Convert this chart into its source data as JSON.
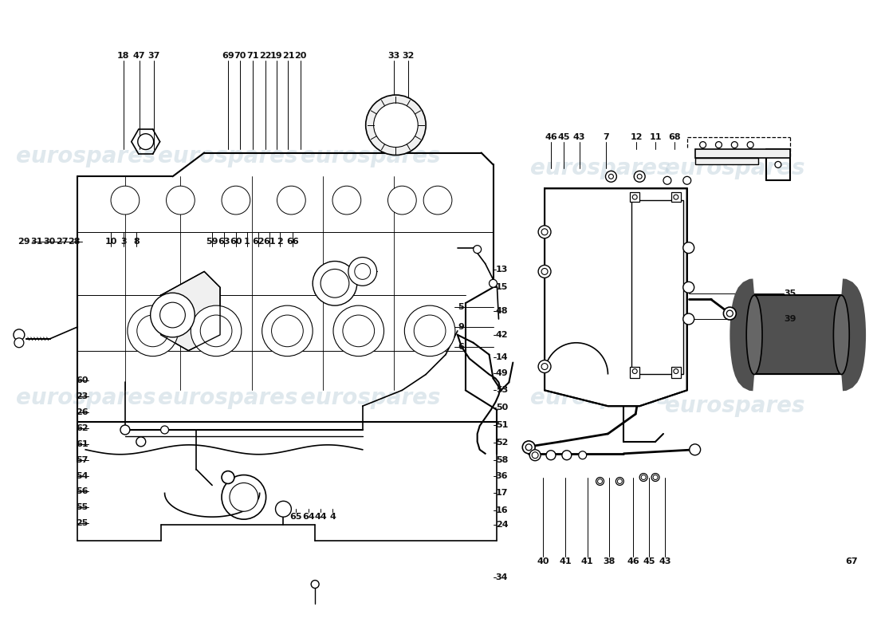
{
  "background_color": "#ffffff",
  "line_color": "#000000",
  "watermark_color": "#b8ccd8",
  "watermark_alpha": 0.45,
  "fig_width": 11.0,
  "fig_height": 8.0,
  "top_numbers": [
    [
      "18",
      148,
      68
    ],
    [
      "47",
      168,
      68
    ],
    [
      "37",
      186,
      68
    ],
    [
      "69",
      280,
      68
    ],
    [
      "70",
      295,
      68
    ],
    [
      "71",
      311,
      68
    ],
    [
      "22",
      327,
      68
    ],
    [
      "19",
      341,
      68
    ],
    [
      "21",
      356,
      68
    ],
    [
      "20",
      372,
      68
    ],
    [
      "33",
      490,
      68
    ],
    [
      "32",
      508,
      68
    ]
  ],
  "mid_left_numbers": [
    [
      "29",
      22,
      302
    ],
    [
      "31",
      38,
      302
    ],
    [
      "30",
      54,
      302
    ],
    [
      "27",
      70,
      302
    ],
    [
      "28",
      86,
      302
    ],
    [
      "10",
      132,
      302
    ],
    [
      "3",
      148,
      302
    ],
    [
      "8",
      164,
      302
    ]
  ],
  "mid_center_numbers": [
    [
      "59",
      260,
      302
    ],
    [
      "63",
      275,
      302
    ],
    [
      "60",
      290,
      302
    ],
    [
      "1",
      304,
      302
    ],
    [
      "62",
      318,
      302
    ],
    [
      "61",
      332,
      302
    ],
    [
      "2",
      346,
      302
    ],
    [
      "66",
      362,
      302
    ]
  ],
  "right_side_numbers": [
    [
      "13",
      626,
      338
    ],
    [
      "15",
      626,
      360
    ],
    [
      "5",
      574,
      385
    ],
    [
      "9",
      574,
      410
    ],
    [
      "6",
      574,
      435
    ],
    [
      "48",
      626,
      390
    ],
    [
      "42",
      626,
      420
    ],
    [
      "14",
      626,
      448
    ],
    [
      "49",
      626,
      468
    ],
    [
      "53",
      626,
      490
    ],
    [
      "50",
      626,
      512
    ],
    [
      "51",
      626,
      534
    ],
    [
      "52",
      626,
      556
    ],
    [
      "58",
      626,
      578
    ],
    [
      "36",
      626,
      598
    ],
    [
      "17",
      626,
      620
    ],
    [
      "16",
      626,
      642
    ],
    [
      "24",
      626,
      660
    ],
    [
      "34",
      626,
      726
    ]
  ],
  "left_lower_numbers": [
    [
      "60",
      96,
      478
    ],
    [
      "23",
      96,
      498
    ],
    [
      "26",
      96,
      518
    ],
    [
      "62",
      96,
      538
    ],
    [
      "61",
      96,
      558
    ],
    [
      "57",
      96,
      578
    ],
    [
      "54",
      96,
      598
    ],
    [
      "56",
      96,
      618
    ],
    [
      "55",
      96,
      638
    ],
    [
      "25",
      96,
      658
    ]
  ],
  "bottom_center_numbers": [
    [
      "65",
      366,
      650
    ],
    [
      "64",
      382,
      650
    ],
    [
      "44",
      397,
      650
    ],
    [
      "4",
      412,
      650
    ]
  ],
  "right_panel_top_numbers": [
    [
      "46",
      688,
      170
    ],
    [
      "45",
      704,
      170
    ],
    [
      "43",
      724,
      170
    ],
    [
      "7",
      758,
      170
    ],
    [
      "12",
      796,
      170
    ],
    [
      "11",
      820,
      170
    ],
    [
      "68",
      844,
      170
    ]
  ],
  "right_panel_side_numbers": [
    [
      "35",
      990,
      368
    ],
    [
      "39",
      990,
      400
    ]
  ],
  "right_panel_bottom_numbers": [
    [
      "40",
      678,
      706
    ],
    [
      "41",
      706,
      706
    ],
    [
      "41",
      734,
      706
    ],
    [
      "38",
      762,
      706
    ],
    [
      "46",
      792,
      706
    ],
    [
      "45",
      812,
      706
    ],
    [
      "43",
      832,
      706
    ],
    [
      "67",
      1068,
      706
    ]
  ]
}
